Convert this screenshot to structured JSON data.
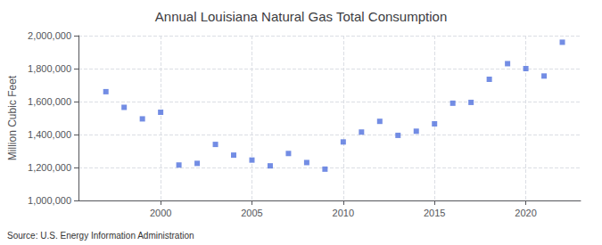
{
  "chart_data": {
    "type": "scatter",
    "title": "Annual Louisiana Natural Gas Total Consumption",
    "ylabel": "Million Cubic Feet",
    "annotation": "Source: U.S. Energy Information Administration",
    "marker": "square",
    "grid": true,
    "x": [
      1997,
      1998,
      1999,
      2000,
      2001,
      2002,
      2003,
      2004,
      2005,
      2006,
      2007,
      2008,
      2009,
      2010,
      2011,
      2012,
      2013,
      2014,
      2015,
      2016,
      2017,
      2018,
      2019,
      2020,
      2021,
      2022
    ],
    "values": [
      1660000,
      1565000,
      1495000,
      1535000,
      1215000,
      1225000,
      1340000,
      1275000,
      1245000,
      1210000,
      1285000,
      1230000,
      1190000,
      1355000,
      1415000,
      1480000,
      1395000,
      1420000,
      1465000,
      1590000,
      1595000,
      1735000,
      1830000,
      1800000,
      1755000,
      1960000
    ],
    "xlim": [
      1995.5,
      2023
    ],
    "xticks": [
      2000,
      2005,
      2010,
      2015,
      2020
    ],
    "ylim": [
      1000000,
      2000000
    ],
    "yticks": [
      {
        "value": 1000000,
        "label": "1,000,000"
      },
      {
        "value": 1200000,
        "label": "1,200,000"
      },
      {
        "value": 1400000,
        "label": "1,400,000"
      },
      {
        "value": 1600000,
        "label": "1,600,000"
      },
      {
        "value": 1800000,
        "label": "1,800,000"
      },
      {
        "value": 2000000,
        "label": "2,000,000"
      }
    ]
  }
}
